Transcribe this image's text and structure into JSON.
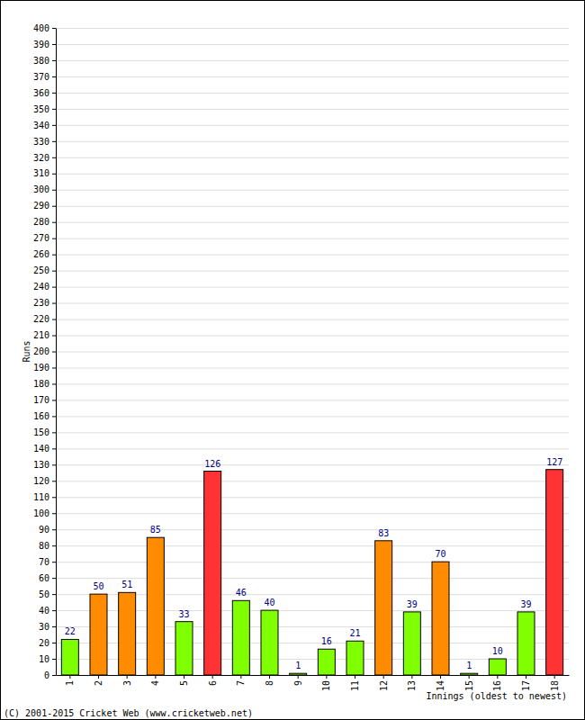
{
  "chart_data": {
    "type": "bar",
    "x_label": "Innings (oldest to newest)",
    "y_label": "Runs",
    "annotations": [
      "(C) 2001-2015 Cricket Web (www.cricketweb.net)"
    ],
    "categories": [
      "1",
      "2",
      "3",
      "4",
      "5",
      "6",
      "7",
      "8",
      "9",
      "10",
      "11",
      "12",
      "13",
      "14",
      "15",
      "16",
      "17",
      "18"
    ],
    "values": [
      22,
      50,
      51,
      85,
      33,
      126,
      46,
      40,
      1,
      16,
      21,
      83,
      39,
      70,
      1,
      10,
      39,
      127
    ],
    "colors": [
      "#80ff00",
      "#ff8c00",
      "#ff8c00",
      "#ff8c00",
      "#80ff00",
      "#ff3333",
      "#80ff00",
      "#80ff00",
      "#80ff00",
      "#80ff00",
      "#80ff00",
      "#ff8c00",
      "#80ff00",
      "#ff8c00",
      "#80ff00",
      "#80ff00",
      "#80ff00",
      "#ff3333"
    ],
    "ylim": [
      0,
      400
    ],
    "yticks": [
      0,
      10,
      20,
      30,
      40,
      50,
      60,
      70,
      80,
      90,
      100,
      110,
      120,
      130,
      140,
      150,
      160,
      170,
      180,
      190,
      200,
      210,
      220,
      230,
      240,
      250,
      260,
      270,
      280,
      290,
      300,
      310,
      320,
      330,
      340,
      350,
      360,
      370,
      380,
      390,
      400
    ],
    "grid": true,
    "data_labels": true
  }
}
